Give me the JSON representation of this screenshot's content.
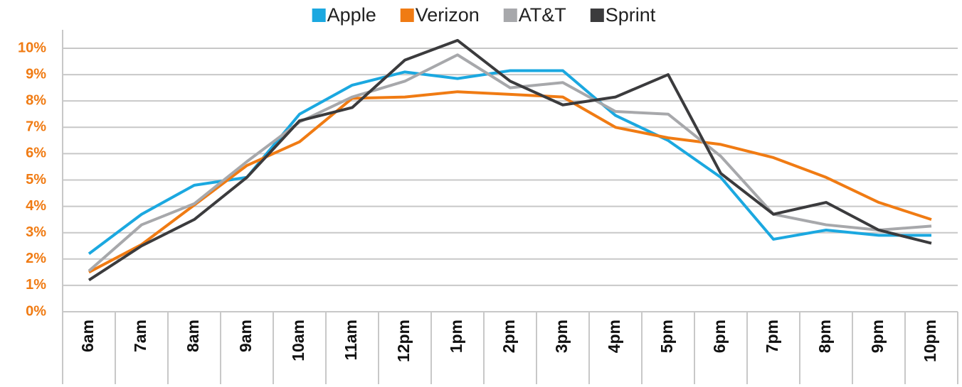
{
  "chart_data": {
    "type": "line",
    "categories": [
      "6am",
      "7am",
      "8am",
      "9am",
      "10am",
      "11am",
      "12pm",
      "1pm",
      "2pm",
      "3pm",
      "4pm",
      "5pm",
      "6pm",
      "7pm",
      "8pm",
      "9pm",
      "10pm"
    ],
    "series": [
      {
        "name": "Apple",
        "color": "#1ba8e0",
        "values": [
          2.2,
          3.7,
          4.8,
          5.1,
          7.5,
          8.6,
          9.1,
          8.85,
          9.15,
          9.15,
          7.45,
          6.5,
          5.1,
          2.75,
          3.1,
          2.9,
          2.9
        ]
      },
      {
        "name": "Verizon",
        "color": "#f07b13",
        "values": [
          1.5,
          2.55,
          4.05,
          5.55,
          6.45,
          8.1,
          8.15,
          8.35,
          8.25,
          8.15,
          7.0,
          6.6,
          6.35,
          5.85,
          5.1,
          4.15,
          3.5
        ]
      },
      {
        "name": "AT&T",
        "color": "#a7a8ab",
        "values": [
          1.55,
          3.3,
          4.1,
          5.7,
          7.2,
          8.15,
          8.75,
          9.75,
          8.5,
          8.7,
          7.6,
          7.5,
          5.9,
          3.7,
          3.3,
          3.1,
          3.25
        ]
      },
      {
        "name": "Sprint",
        "color": "#3b3b3d",
        "values": [
          1.2,
          2.5,
          3.5,
          5.1,
          7.25,
          7.75,
          9.55,
          10.3,
          8.75,
          7.85,
          8.15,
          9.0,
          5.25,
          3.7,
          4.15,
          3.1,
          2.6
        ]
      }
    ],
    "ylim": [
      0,
      10.7
    ],
    "yticks": [
      {
        "value": 0,
        "label": "0%"
      },
      {
        "value": 1,
        "label": "1%"
      },
      {
        "value": 2,
        "label": "2%"
      },
      {
        "value": 3,
        "label": "3%"
      },
      {
        "value": 4,
        "label": "4%"
      },
      {
        "value": 5,
        "label": "5%"
      },
      {
        "value": 6,
        "label": "6%"
      },
      {
        "value": 7,
        "label": "7%"
      },
      {
        "value": 8,
        "label": "8%"
      },
      {
        "value": 9,
        "label": "9%"
      },
      {
        "value": 10,
        "label": "10%"
      }
    ],
    "ytick_color": "#f07b13",
    "grid": true,
    "legend": "top"
  }
}
